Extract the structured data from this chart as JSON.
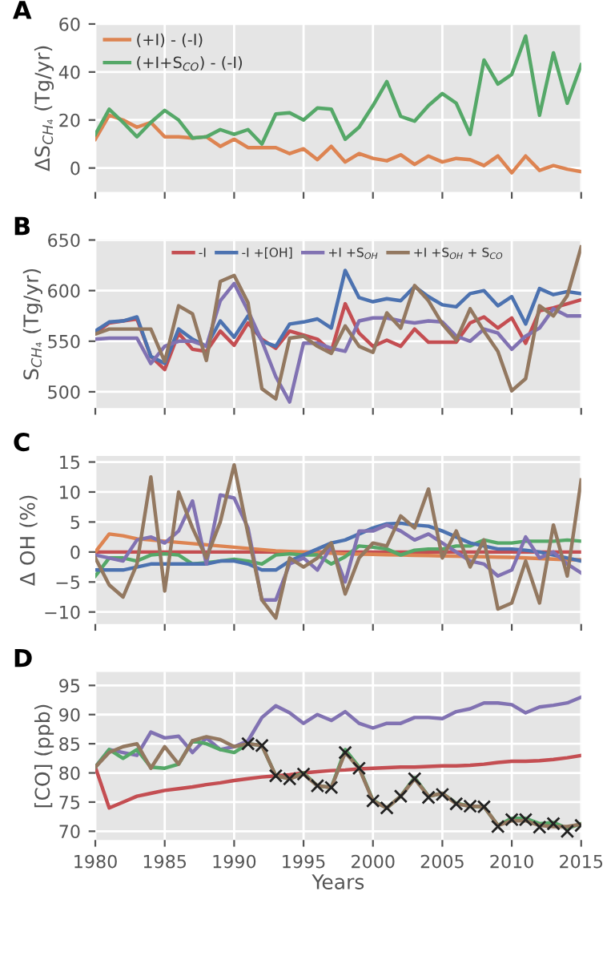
{
  "chart_data": [
    {
      "type": "line",
      "title": "A",
      "ylabel": "ΔS$_{CH₄}$ (Tg/yr)",
      "x": [
        1980,
        1981,
        1982,
        1983,
        1984,
        1985,
        1986,
        1987,
        1988,
        1989,
        1990,
        1991,
        1992,
        1993,
        1994,
        1995,
        1996,
        1997,
        1998,
        1999,
        2000,
        2001,
        2002,
        2003,
        2004,
        2005,
        2006,
        2007,
        2008,
        2009,
        2010,
        2011,
        2012,
        2013,
        2014,
        2015
      ],
      "xlim": [
        1980,
        2015
      ],
      "xticks": [
        1980,
        1985,
        1990,
        1995,
        2000,
        2005,
        2010,
        2015
      ],
      "ylim": [
        -10,
        60
      ],
      "yticks": [
        0,
        20,
        40,
        60
      ],
      "grid": true,
      "legend": "top left",
      "tick_labels": "y",
      "series": [
        {
          "name": "(+I) - (-I)",
          "color": "#dd8452",
          "values": [
            12,
            22,
            20,
            17,
            19,
            13,
            13,
            12.5,
            13,
            9,
            12,
            8.5,
            8.5,
            8.5,
            6,
            8,
            3.5,
            9,
            2.5,
            6,
            4,
            3,
            5.5,
            1.5,
            5,
            2.5,
            4,
            3.5,
            1,
            5,
            -2,
            5,
            -1,
            1,
            -0.5,
            -1.5
          ]
        },
        {
          "name": "(+I+S$_{CO}$) - (-I)",
          "color": "#55a868",
          "values": [
            14,
            24.5,
            19,
            13,
            19,
            24,
            20,
            12.5,
            13,
            16,
            14,
            16,
            10,
            22.5,
            23,
            20,
            25,
            24.5,
            12,
            17,
            26,
            36,
            21.5,
            19.5,
            26,
            31,
            27,
            14,
            45,
            35,
            39,
            55,
            22,
            48,
            27,
            43
          ]
        }
      ]
    },
    {
      "type": "line",
      "title": "B",
      "ylabel": "S$_{CH₄}$ (Tg/yr)",
      "x": [
        1980,
        1981,
        1982,
        1983,
        1984,
        1985,
        1986,
        1987,
        1988,
        1989,
        1990,
        1991,
        1992,
        1993,
        1994,
        1995,
        1996,
        1997,
        1998,
        1999,
        2000,
        2001,
        2002,
        2003,
        2004,
        2005,
        2006,
        2007,
        2008,
        2009,
        2010,
        2011,
        2012,
        2013,
        2014,
        2015
      ],
      "xlim": [
        1980,
        2015
      ],
      "xticks": [
        1980,
        1985,
        1990,
        1995,
        2000,
        2005,
        2010,
        2015
      ],
      "ylim": [
        484,
        650
      ],
      "yticks": [
        500,
        550,
        600,
        650
      ],
      "grid": true,
      "legend": "top",
      "tick_labels": "y",
      "series": [
        {
          "name": "-I",
          "color": "#c44e52",
          "values": [
            558,
            568,
            570,
            572,
            535,
            522,
            558,
            542,
            540,
            560,
            546,
            568,
            552,
            543,
            560,
            556,
            552,
            540,
            587,
            558,
            545,
            551,
            545,
            562,
            549,
            549,
            549,
            568,
            574,
            563,
            573,
            548,
            580,
            583,
            587,
            591
          ]
        },
        {
          "name": "-I +[OH]",
          "color": "#4c72b0",
          "values": [
            560,
            569,
            570,
            574,
            535,
            528,
            562,
            552,
            545,
            570,
            554,
            575,
            550,
            545,
            567,
            569,
            572,
            563,
            620,
            593,
            589,
            592,
            590,
            604,
            594,
            586,
            584,
            597,
            600,
            585,
            594,
            567,
            602,
            596,
            599,
            597
          ]
        },
        {
          "name": "+I +S$_{OH}$",
          "color": "#8172b2",
          "values": [
            552,
            553,
            553,
            553,
            528,
            545,
            550,
            550,
            545,
            590,
            607,
            580,
            550,
            515,
            490,
            548,
            548,
            543,
            540,
            570,
            573,
            573,
            570,
            568,
            570,
            569,
            555,
            550,
            562,
            558,
            542,
            555,
            563,
            582,
            575,
            575
          ]
        },
        {
          "name": "+I +S$_{OH}$ + S$_{CO}$",
          "color": "#937860",
          "values": [
            557,
            562,
            562,
            562,
            562,
            530,
            585,
            577,
            531,
            609,
            615,
            588,
            503,
            493,
            553,
            555,
            545,
            538,
            565,
            545,
            539,
            578,
            563,
            605,
            590,
            567,
            551,
            582,
            560,
            540,
            501,
            513,
            585,
            575,
            595,
            643
          ]
        }
      ]
    },
    {
      "type": "line",
      "title": "C",
      "ylabel": "Δ OH (%)",
      "x": [
        1980,
        1981,
        1982,
        1983,
        1984,
        1985,
        1986,
        1987,
        1988,
        1989,
        1990,
        1991,
        1992,
        1993,
        1994,
        1995,
        1996,
        1997,
        1998,
        1999,
        2000,
        2001,
        2002,
        2003,
        2004,
        2005,
        2006,
        2007,
        2008,
        2009,
        2010,
        2011,
        2012,
        2013,
        2014,
        2015
      ],
      "xlim": [
        1980,
        2015
      ],
      "xticks": [
        1980,
        1985,
        1990,
        1995,
        2000,
        2005,
        2010,
        2015
      ],
      "ylim": [
        -12,
        16
      ],
      "yticks": [
        {
          "value": -10,
          "label": "−10"
        },
        {
          "value": -5,
          "label": "−5"
        },
        0,
        5,
        10,
        15
      ],
      "grid": true,
      "tick_labels": "y",
      "series": [
        {
          "color": "#c44e52",
          "values": [
            0,
            0,
            0,
            0,
            0,
            0,
            0,
            0,
            0,
            0,
            0,
            0,
            0,
            0,
            0,
            0,
            0,
            0,
            0,
            0,
            0,
            0,
            0,
            0,
            0,
            0,
            0,
            0,
            0,
            0,
            0,
            0,
            0,
            0,
            0,
            0
          ]
        },
        {
          "color": "#dd8452",
          "values": [
            0,
            3,
            2.7,
            2.2,
            2,
            1.8,
            1.6,
            1.4,
            1.2,
            1,
            0.8,
            0.6,
            0.4,
            0.2,
            0.1,
            0,
            -0.1,
            -0.2,
            -0.3,
            -0.35,
            -0.4,
            -0.45,
            -0.5,
            -0.55,
            -0.6,
            -0.65,
            -0.7,
            -0.75,
            -0.8,
            -0.85,
            -0.9,
            -1,
            -1.1,
            -1.2,
            -1.3,
            -1.3
          ]
        },
        {
          "color": "#55a868",
          "values": [
            -4,
            -1,
            -1,
            -1.5,
            -0.5,
            -0.3,
            -0.5,
            -2,
            -1.8,
            -1.5,
            -1.2,
            -1.5,
            -2,
            -0.5,
            -0.3,
            -0.5,
            -0.5,
            -2,
            -0.8,
            1,
            0.8,
            0.5,
            -0.5,
            0.3,
            0.5,
            0.5,
            1,
            1,
            2,
            1.5,
            1.5,
            1.8,
            1.8,
            1.8,
            2,
            1.8
          ]
        },
        {
          "color": "#4c72b0",
          "values": [
            -3,
            -3,
            -3,
            -2.5,
            -2,
            -2,
            -2,
            -2,
            -2,
            -1.5,
            -1.5,
            -2,
            -3,
            -3,
            -1.5,
            -0.5,
            0.5,
            1.5,
            2,
            3,
            4,
            4.7,
            4.8,
            4.5,
            4.3,
            3.5,
            2.5,
            1.5,
            1,
            0.5,
            0.5,
            0.3,
            0,
            -0.5,
            -1,
            -1.5
          ]
        },
        {
          "color": "#8172b2",
          "values": [
            -0.5,
            -1,
            -1.5,
            2,
            2.5,
            1.5,
            3.5,
            8.5,
            -2,
            9.5,
            9,
            4,
            -8,
            -8,
            -2,
            -1,
            -3,
            1,
            -5,
            3.5,
            3.5,
            4.5,
            3.5,
            2,
            3,
            1.5,
            0,
            -1.5,
            -2,
            -4,
            -3,
            2.5,
            -1,
            0,
            -2,
            -3.5
          ]
        },
        {
          "color": "#937860",
          "values": [
            -1,
            -5.5,
            -7.5,
            -2,
            12.5,
            -6.5,
            10,
            4,
            -1,
            5,
            14.5,
            3,
            -8,
            -11,
            -1,
            -2.5,
            -1,
            1.5,
            -7,
            -1,
            1.5,
            1,
            6,
            4,
            10.5,
            -1,
            3.5,
            -2.5,
            2,
            -9.5,
            -8.5,
            -1.5,
            -8.5,
            4.5,
            -4,
            12
          ]
        }
      ]
    },
    {
      "type": "line",
      "title": "D",
      "ylabel": "[CO] (ppb)",
      "xlabel": "Years",
      "x": [
        1980,
        1981,
        1982,
        1983,
        1984,
        1985,
        1986,
        1987,
        1988,
        1989,
        1990,
        1991,
        1992,
        1993,
        1994,
        1995,
        1996,
        1997,
        1998,
        1999,
        2000,
        2001,
        2002,
        2003,
        2004,
        2005,
        2006,
        2007,
        2008,
        2009,
        2010,
        2011,
        2012,
        2013,
        2014,
        2015
      ],
      "xlim": [
        1980,
        2015
      ],
      "xticks": [
        1980,
        1985,
        1990,
        1995,
        2000,
        2005,
        2010,
        2015
      ],
      "ylim": [
        68.5,
        97.3
      ],
      "yticks": [
        70,
        75,
        80,
        85,
        90,
        95
      ],
      "grid": true,
      "series": [
        {
          "color": "#c44e52",
          "values": [
            81,
            74,
            75,
            76,
            76.5,
            77,
            77.3,
            77.6,
            78,
            78.3,
            78.7,
            79,
            79.3,
            79.5,
            79.7,
            80,
            80.2,
            80.4,
            80.5,
            80.7,
            80.8,
            80.9,
            81,
            81,
            81.1,
            81.2,
            81.2,
            81.3,
            81.5,
            81.8,
            82,
            82,
            82.1,
            82.3,
            82.6,
            83
          ]
        },
        {
          "color": "#8172b2",
          "values": [
            81,
            84,
            83.5,
            83,
            87,
            86,
            86.3,
            83.5,
            86,
            84,
            84.5,
            85.5,
            89.5,
            91.5,
            90.3,
            88.5,
            90,
            89,
            90.5,
            88.5,
            87.7,
            88.5,
            88.5,
            89.5,
            89.5,
            89.3,
            90.5,
            91,
            92,
            92,
            91.7,
            90.3,
            91.3,
            91.6,
            92,
            93
          ]
        },
        {
          "color": "#55a868",
          "values": [
            81,
            84,
            82.5,
            84,
            81,
            80.8,
            81.5,
            85.5,
            85,
            84,
            83.5,
            85,
            84.7,
            79.5,
            79,
            80,
            77.8,
            77.5,
            84,
            81,
            75.3,
            74,
            76,
            79.2,
            76,
            76.5,
            74.8,
            74.3,
            74.2,
            71,
            72.2,
            72.2,
            71.3,
            71.5,
            70.5,
            71.3
          ]
        },
        {
          "color": "#937860",
          "values": [
            81,
            83.5,
            84.5,
            85,
            80.8,
            84.5,
            81.5,
            85.5,
            86.2,
            85.7,
            84.5,
            85,
            84.7,
            79.5,
            79,
            79.8,
            77.8,
            77.5,
            83.5,
            80.8,
            75.2,
            74,
            76,
            79,
            76,
            76.5,
            74.7,
            74.3,
            74.2,
            71,
            71.8,
            71.8,
            71,
            70.8,
            70.8,
            71.2
          ]
        },
        {
          "type": "scatter",
          "marker": "cross",
          "color": "#222222",
          "x": [
            1991,
            1992,
            1993,
            1994,
            1995,
            1996,
            1997,
            1998,
            1999,
            2000,
            2001,
            2002,
            2003,
            2004,
            2005,
            2006,
            2007,
            2008,
            2009,
            2010,
            2011,
            2012,
            2013,
            2014,
            2015
          ],
          "values": [
            85,
            84.7,
            79.5,
            79,
            79.8,
            77.8,
            77.5,
            83.5,
            80.8,
            75.2,
            74,
            76,
            79,
            75.8,
            76.3,
            74.7,
            74.3,
            74.2,
            70.8,
            72,
            72,
            70.7,
            71.3,
            70,
            71
          ]
        }
      ]
    }
  ]
}
